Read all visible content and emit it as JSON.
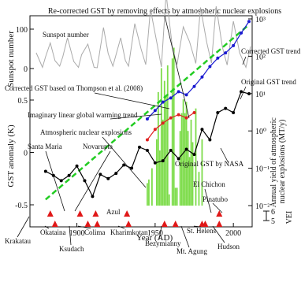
{
  "chart_data": {
    "type": "line",
    "title": "Re-corrected GST by removing effects by atmospheric nuclear explosions",
    "xlabel": "Year (AD)",
    "x_ticks": [
      1900,
      1950,
      2000
    ],
    "xlim": [
      1870,
      2012
    ],
    "axes": {
      "sunspot": {
        "label": "Sunspot number",
        "ticks": [
          "0",
          "100"
        ],
        "ylim": [
          0,
          170
        ]
      },
      "gst": {
        "label": "GST anomaly (K)",
        "ticks": [
          "-0.5",
          "0",
          "0.5"
        ],
        "ylim": [
          -0.5,
          0.6
        ]
      },
      "nuclear": {
        "label": "Annual yield of atmospheric nuclear explosions (MT/y)",
        "ticks": [
          "10³",
          "10²",
          "10¹",
          "10⁰",
          "10⁻¹",
          "10⁻²"
        ],
        "scale": "log",
        "ylim": [
          0.01,
          1000
        ]
      },
      "vei": {
        "label": "VEI",
        "ticks": [
          "6",
          "5"
        ]
      }
    },
    "series": [
      {
        "name": "Original GST by NASA",
        "color": "#000000",
        "x": [
          1880,
          1885,
          1890,
          1895,
          1900,
          1905,
          1910,
          1915,
          1920,
          1925,
          1930,
          1935,
          1940,
          1945,
          1950,
          1955,
          1960,
          1965,
          1970,
          1975,
          1980,
          1985,
          1990,
          1995,
          2000,
          2005,
          2010
        ],
        "values": [
          -0.18,
          -0.22,
          -0.27,
          -0.22,
          -0.13,
          -0.27,
          -0.42,
          -0.21,
          -0.25,
          -0.2,
          -0.12,
          -0.15,
          0.05,
          0.02,
          -0.1,
          -0.08,
          0.02,
          -0.06,
          0.03,
          -0.02,
          0.22,
          0.12,
          0.38,
          0.42,
          0.38,
          0.58,
          0.56
        ]
      },
      {
        "name": "Corrected GST based on Thompson et al. (2008)",
        "color": "#e02020",
        "x": [
          1945,
          1950,
          1955,
          1960,
          1965,
          1970,
          1975
        ],
        "values": [
          0.12,
          0.22,
          0.28,
          0.33,
          0.36,
          0.33,
          0.38
        ]
      },
      {
        "name": "Corrected GST trend",
        "color": "#1a1ad0",
        "x": [
          1945,
          1950,
          1955,
          1960,
          1965,
          1970,
          1975,
          1980,
          1985,
          1990,
          1995,
          2000,
          2005,
          2010
        ],
        "values": [
          0.32,
          0.4,
          0.48,
          0.52,
          0.58,
          0.55,
          0.63,
          0.72,
          0.82,
          0.9,
          0.95,
          1.02,
          1.14,
          1.25
        ]
      },
      {
        "name": "Imaginary linear global warming trend",
        "color": "#22cc22",
        "x": [
          1880,
          2010
        ],
        "values": [
          -0.45,
          1.22
        ]
      }
    ],
    "sunspot_series": {
      "name": "Sunspot number",
      "color": "#aaaaaa",
      "x": [
        1874,
        1878,
        1880,
        1883,
        1886,
        1889,
        1891,
        1894,
        1898,
        1901,
        1903,
        1907,
        1911,
        1913,
        1917,
        1920,
        1923,
        1928,
        1931,
        1933,
        1937,
        1941,
        1944,
        1947,
        1951,
        1954,
        1957,
        1961,
        1964,
        1968,
        1972,
        1976,
        1979,
        1983,
        1986,
        1989,
        1993,
        1996,
        2000,
        2004,
        2008,
        2011
      ],
      "values": [
        40,
        3,
        30,
        65,
        20,
        6,
        30,
        78,
        18,
        3,
        35,
        62,
        3,
        2,
        104,
        38,
        6,
        78,
        20,
        6,
        114,
        50,
        10,
        151,
        68,
        4,
        190,
        55,
        10,
        106,
        68,
        13,
        155,
        66,
        14,
        158,
        54,
        9,
        120,
        40,
        3,
        56
      ]
    },
    "nuclear_yield": {
      "name": "Atmospheric nuclear explosions",
      "color": "#7ddc4a",
      "x": [
        1945,
        1946,
        1948,
        1951,
        1952,
        1953,
        1954,
        1955,
        1956,
        1957,
        1958,
        1959,
        1961,
        1962,
        1963,
        1964,
        1966,
        1967,
        1968,
        1969,
        1970,
        1971,
        1972,
        1973,
        1974,
        1976,
        1978,
        1980
      ],
      "values": [
        0.04,
        0.05,
        0.1,
        0.6,
        11,
        0.3,
        48,
        2,
        22,
        9,
        57,
        0.02,
        87,
        170,
        0.03,
        0.03,
        1,
        3,
        7,
        3,
        6,
        1,
        0.2,
        2,
        0.5,
        4,
        0.08,
        0.6
      ]
    },
    "volcanoes": [
      {
        "name": "Krakatau",
        "year": 1883,
        "vei": 6
      },
      {
        "name": "Okataina",
        "year": 1886,
        "vei": 5
      },
      {
        "name": "Santa Maria",
        "year": 1902,
        "vei": 6
      },
      {
        "name": "Ksudach",
        "year": 1907,
        "vei": 5
      },
      {
        "name": "Novarupta",
        "year": 1912,
        "vei": 6
      },
      {
        "name": "Colima",
        "year": 1913,
        "vei": 5
      },
      {
        "name": "Azul",
        "year": 1932,
        "vei": 6
      },
      {
        "name": "Kharimkotan",
        "year": 1933,
        "vei": 5
      },
      {
        "name": "Bezymianny",
        "year": 1956,
        "vei": 5
      },
      {
        "name": "Mt. Agung",
        "year": 1963,
        "vei": 5
      },
      {
        "name": "St. Helens",
        "year": 1980,
        "vei": 5
      },
      {
        "name": "El Chichon",
        "year": 1982,
        "vei": 5
      },
      {
        "name": "Pinatubo",
        "year": 1991,
        "vei": 6
      },
      {
        "name": "Hudson",
        "year": 1991,
        "vei": 5
      }
    ],
    "annotations": [
      "Sunspot number",
      "Corrected GST trend",
      "Original GST trend",
      "Corrected GST based on Thompson et al. (2008)",
      "Imaginary linear global warming trend",
      "Atmospheric nuclear explosions",
      "Santa Maria",
      "Novarupta",
      "Original GST by NASA",
      "El Chichon",
      "Azul",
      "Pinatubo",
      "Krakatau",
      "Okataina",
      "Ksudach",
      "Colima",
      "Kharimkotan",
      "Bezymianny",
      "St. Helens",
      "Mt. Agung",
      "Hudson"
    ]
  }
}
